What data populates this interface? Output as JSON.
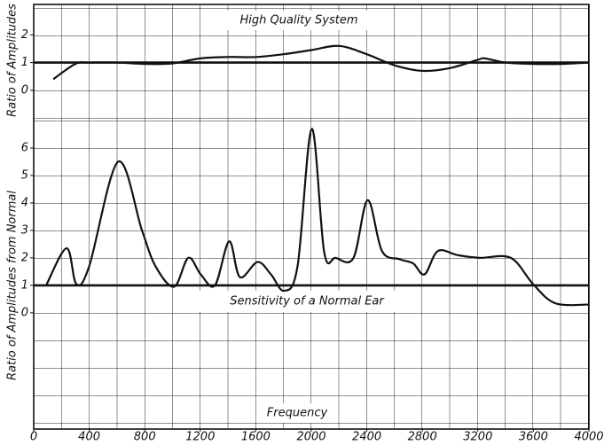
{
  "chart_data": [
    {
      "type": "line",
      "title": "High Quality System",
      "ylabel": "Ratio of Amplitudes",
      "xlim": [
        0,
        4000
      ],
      "ylim": [
        -1,
        3.1
      ],
      "yticks": [
        0,
        1,
        2
      ],
      "hlines": [
        1
      ],
      "color": "#111",
      "x": [
        141,
        300,
        400,
        600,
        800,
        1000,
        1200,
        1400,
        1600,
        1800,
        2000,
        2200,
        2400,
        2600,
        2800,
        3000,
        3200,
        3250,
        3400,
        3600,
        3800,
        4000
      ],
      "values": [
        0.4,
        0.95,
        1.0,
        1.0,
        0.95,
        0.97,
        1.15,
        1.2,
        1.2,
        1.3,
        1.45,
        1.6,
        1.3,
        0.9,
        0.7,
        0.8,
        1.1,
        1.15,
        1.0,
        0.95,
        0.95,
        1.0
      ]
    },
    {
      "type": "line",
      "ylabel": "Ratio of Amplitudes from Normal",
      "xlabel": "Frequency",
      "annotation": "Sensitivity of a Normal Ear",
      "xlim": [
        0,
        4000
      ],
      "xticks": [
        0,
        400,
        800,
        1200,
        1600,
        2000,
        2400,
        2800,
        3200,
        3600,
        4000
      ],
      "ylim": [
        -4.2,
        7
      ],
      "yticks": [
        0,
        1,
        2,
        3,
        4,
        5,
        6
      ],
      "hlines": [
        1
      ],
      "color": "#111",
      "x": [
        90,
        237,
        307,
        400,
        608,
        780,
        877,
        1011,
        1114,
        1203,
        1306,
        1408,
        1485,
        1613,
        1709,
        1805,
        1901,
        2003,
        2093,
        2176,
        2304,
        2406,
        2509,
        2637,
        2733,
        2816,
        2912,
        3053,
        3213,
        3437,
        3597,
        3757,
        4000
      ],
      "values": [
        1.0,
        2.35,
        1.05,
        1.7,
        5.5,
        3.0,
        1.7,
        0.95,
        2.0,
        1.4,
        1.0,
        2.6,
        1.3,
        1.85,
        1.4,
        0.8,
        1.7,
        6.7,
        2.2,
        2.0,
        2.0,
        4.1,
        2.25,
        1.95,
        1.8,
        1.4,
        2.25,
        2.1,
        2.0,
        2.0,
        1.05,
        0.35,
        0.3
      ]
    }
  ]
}
